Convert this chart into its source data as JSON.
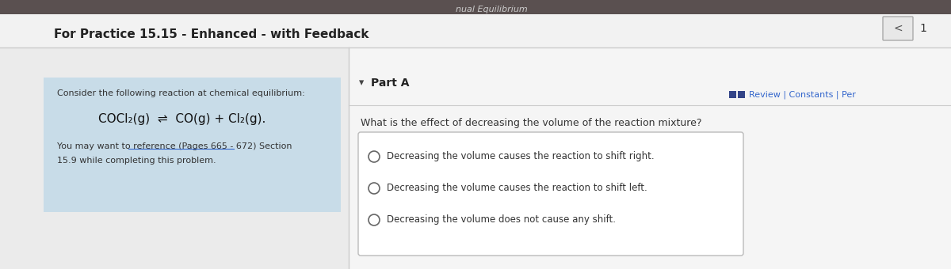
{
  "title": "For Practice 15.15 - Enhanced - with Feedback",
  "review_links": "Review | Constants | Per",
  "left_panel_bg": "#c8dce8",
  "main_bg": "#dcdcdc",
  "upper_bg": "#e8e8e8",
  "consider_text": "Consider the following reaction at chemical equilibrium:",
  "reaction": "COCl₂(g)  ⇌  CO(g) + Cl₂(g).",
  "reference_line1": "You may want to reference (Pages 665 - 672) Section",
  "reference_line2": "15.9 while completing this problem.",
  "part_a_label": "Part A",
  "question": "What is the effect of decreasing the volume of the reaction mixture?",
  "options": [
    "Decreasing the volume causes the reaction to shift right.",
    "Decreasing the volume causes the reaction to shift left.",
    "Decreasing the volume does not cause any shift."
  ],
  "answer_box_bg": "#ffffff",
  "answer_box_border": "#bbbbbb",
  "top_bar_bg": "#5a5050",
  "top_bar_text": "nual Equilibrium",
  "page_number": "1",
  "nav_btn_bg": "#e8e8e8",
  "nav_btn_border": "#aaaaaa",
  "title_color": "#222222",
  "text_color": "#333333",
  "link_color": "#3366cc",
  "review_icon_color": "#3355aa"
}
